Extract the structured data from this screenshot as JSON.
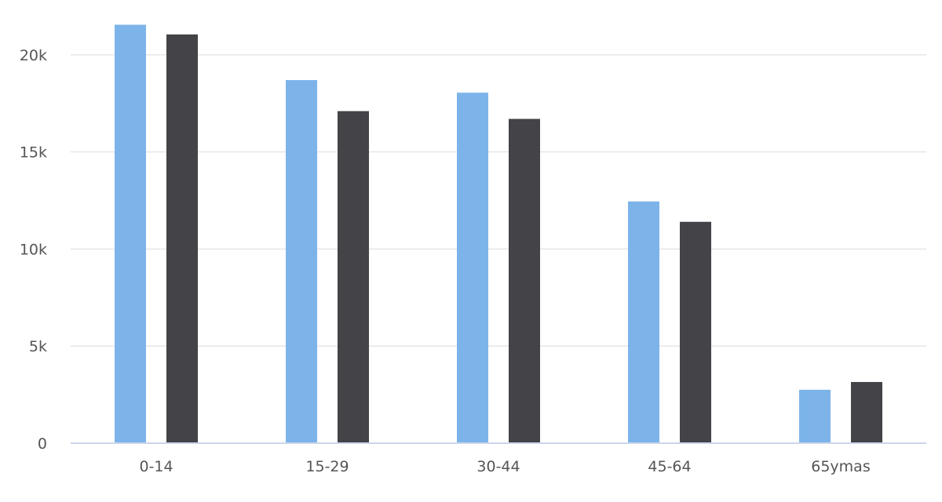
{
  "chart_data": {
    "type": "bar",
    "categories": [
      "0-14",
      "15-29",
      "30-44",
      "45-64",
      "65ymas"
    ],
    "series": [
      {
        "color": "#7cb4ea",
        "values": [
          21550,
          18700,
          18050,
          12450,
          2750
        ]
      },
      {
        "color": "#434348",
        "values": [
          21050,
          17100,
          16700,
          11400,
          3150
        ]
      }
    ],
    "yticks": [
      {
        "value": 0,
        "label": "0"
      },
      {
        "value": 5000,
        "label": "5k"
      },
      {
        "value": 10000,
        "label": "10k"
      },
      {
        "value": 15000,
        "label": "15k"
      },
      {
        "value": 20000,
        "label": "20k"
      }
    ],
    "ylim": [
      0,
      22500
    ],
    "grid": true,
    "legend": "none",
    "gridline_color": "#e6e6e6",
    "axis_color": "#ccd6eb"
  }
}
